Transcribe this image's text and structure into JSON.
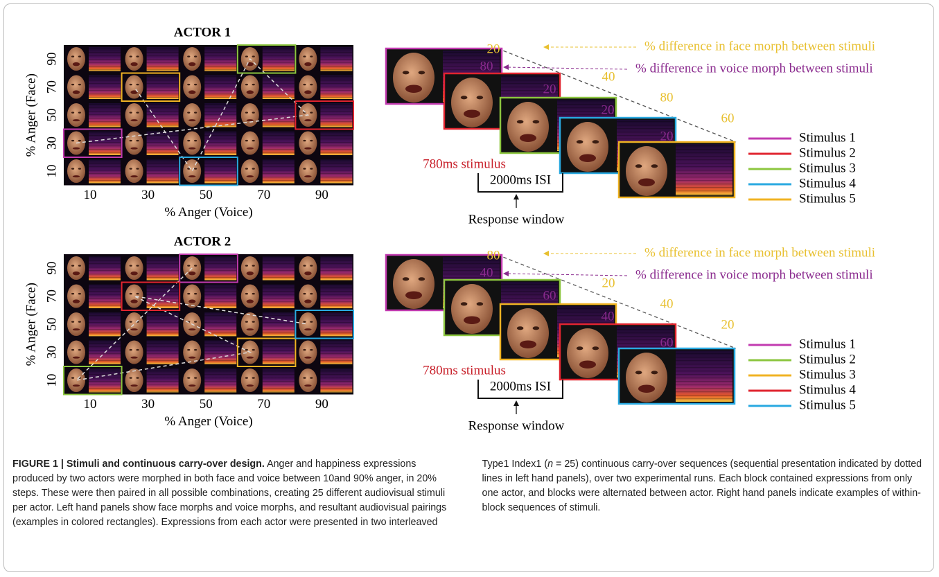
{
  "panels": [
    {
      "title": "ACTOR 1",
      "y_label": "% Anger (Face)",
      "x_label": "% Anger (Voice)",
      "x_ticks": [
        10,
        30,
        50,
        70,
        90
      ],
      "y_ticks": [
        10,
        30,
        50,
        70,
        90
      ],
      "sequence": {
        "face_differences": [
          20,
          40,
          80,
          60
        ],
        "voice_differences": [
          80,
          20,
          20,
          20
        ],
        "face_note": "% difference in face morph between stimuli",
        "voice_note": "% difference in voice morph between stimuli",
        "stimulus_label": "780ms stimulus",
        "isi_label": "2000ms ISI",
        "response_label": "Response window",
        "legend": [
          {
            "label": "Stimulus 1",
            "color": "#c23bb0"
          },
          {
            "label": "Stimulus 2",
            "color": "#e0242f"
          },
          {
            "label": "Stimulus 3",
            "color": "#8cc63f"
          },
          {
            "label": "Stimulus 4",
            "color": "#29a9e0"
          },
          {
            "label": "Stimulus 5",
            "color": "#f0b323"
          }
        ]
      }
    },
    {
      "title": "ACTOR 2",
      "y_label": "% Anger (Face)",
      "x_label": "% Anger (Voice)",
      "x_ticks": [
        10,
        30,
        50,
        70,
        90
      ],
      "y_ticks": [
        10,
        30,
        50,
        70,
        90
      ],
      "sequence": {
        "face_differences": [
          80,
          20,
          40,
          20
        ],
        "voice_differences": [
          40,
          60,
          40,
          60
        ],
        "face_note": "% difference in face morph between stimuli",
        "voice_note": "% difference in voice morph between stimuli",
        "stimulus_label": "780ms stimulus",
        "isi_label": "2000ms ISI",
        "response_label": "Response window",
        "legend": [
          {
            "label": "Stimulus 1",
            "color": "#c23bb0"
          },
          {
            "label": "Stimulus 2",
            "color": "#8cc63f"
          },
          {
            "label": "Stimulus 3",
            "color": "#f0b323"
          },
          {
            "label": "Stimulus 4",
            "color": "#e0242f"
          },
          {
            "label": "Stimulus 5",
            "color": "#29a9e0"
          }
        ]
      }
    }
  ],
  "caption": {
    "lead": "FIGURE 1 | Stimuli and continuous carry-over design.",
    "body_1": "Anger and happiness expressions produced by two actors were morphed in both face and voice between 10and 90% anger, in 20% steps. These were then paired in all possible combinations, creating 25 different audiovisual stimuli per actor. Left hand panels show face morphs and voice morphs, and resultant audiovisual pairings (examples in colored rectangles). Expressions from each actor were presented in two interleaved Type1 Index1 (",
    "variable": "n",
    "body_2": "= 25) continuous carry-over sequences (sequential presentation indicated by dotted lines in left hand panels), over two experimental runs. Each block contained expressions from only one actor, and blocks were alternated between actor. Right hand panels indicate examples of within-block sequences of stimuli."
  }
}
